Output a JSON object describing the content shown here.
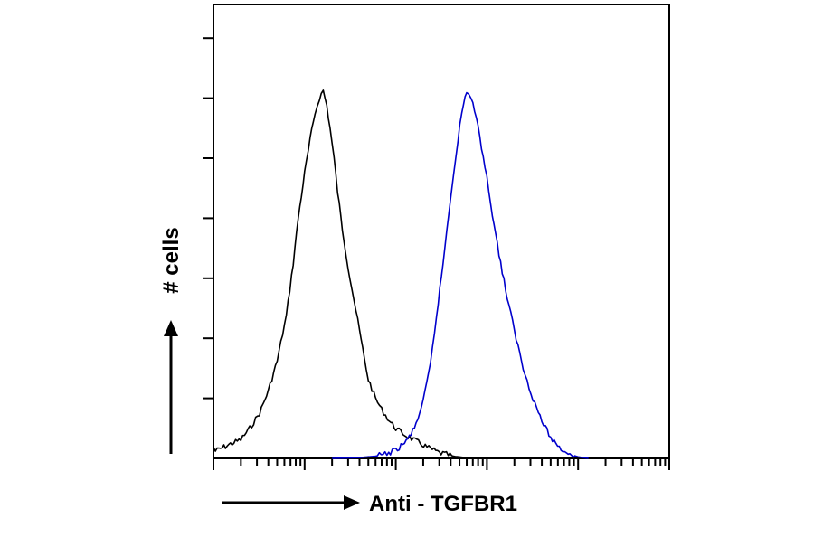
{
  "chart_data": {
    "type": "line",
    "title": "",
    "xlabel": "Anti - TGFBR1",
    "ylabel": "# cells",
    "x_scale": "log",
    "xlim": [
      1,
      100000
    ],
    "ylim": [
      0,
      100
    ],
    "y_tick_values": [
      16,
      32,
      48,
      64,
      80,
      96,
      112
    ],
    "grid": false,
    "legend": "none",
    "series": [
      {
        "color": "#000000",
        "x": [
          1,
          1.05,
          1.3,
          1.6,
          2.0,
          2.5,
          3.2,
          4.0,
          5.0,
          6.3,
          7.5,
          8.5,
          10,
          11.5,
          13,
          14.5,
          16,
          17.5,
          19,
          21,
          23,
          26,
          30,
          35,
          40,
          45,
          50,
          60,
          70,
          85,
          100,
          130,
          170,
          220,
          300,
          450,
          650,
          1000
        ],
        "y": [
          3,
          2,
          3,
          4,
          5,
          8,
          12,
          18,
          26,
          38,
          52,
          64,
          76,
          85,
          92,
          96,
          98,
          94,
          88,
          80,
          71,
          61,
          51,
          42,
          34,
          27,
          21,
          16,
          13,
          10,
          8,
          6,
          4.5,
          3,
          1.5,
          0.5,
          0.1,
          0
        ]
      },
      {
        "color": "#0000cc",
        "x": [
          20,
          40,
          60,
          80,
          100,
          130,
          160,
          200,
          240,
          280,
          330,
          380,
          430,
          480,
          530,
          600,
          700,
          800,
          950,
          1100,
          1300,
          1600,
          2000,
          2500,
          3200,
          4000,
          5000,
          6500,
          8500,
          10000,
          13000
        ],
        "y": [
          0,
          0.2,
          0.6,
          1.2,
          2.2,
          4.5,
          8,
          15,
          25,
          38,
          52,
          65,
          76,
          85,
          92,
          98,
          95,
          88,
          78,
          68,
          57,
          45,
          34,
          24,
          16,
          10,
          5.5,
          2.5,
          1,
          0.4,
          0
        ]
      }
    ]
  }
}
